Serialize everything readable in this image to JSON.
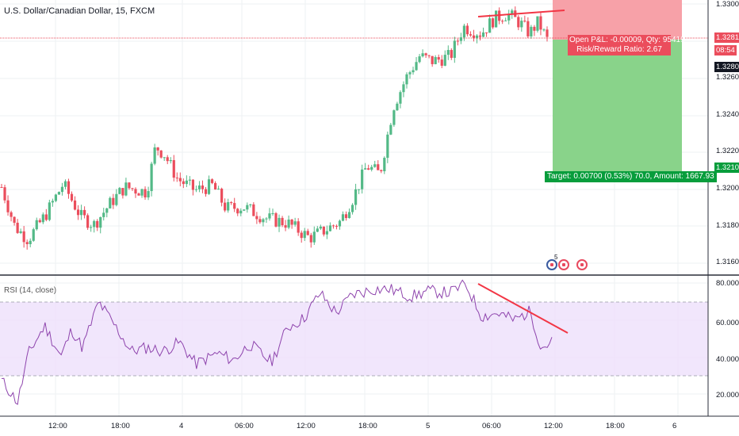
{
  "symbol_title": "U.S. Dollar/Canadian Dollar, 15, FXCM",
  "rsi_title": "RSI (14, close)",
  "colors": {
    "up": "#53b987",
    "down": "#eb4d5c",
    "rsi": "#8e44ad",
    "rsi_band": "#ede0fb",
    "red_line": "#f23645",
    "stop": "#f7a1a8",
    "target": "#89d38a"
  },
  "price_axis": {
    "ticks": [
      "1.33000",
      "1.32600",
      "1.32400",
      "1.32200",
      "1.32000",
      "1.31800",
      "1.31600"
    ],
    "current_price": "1.32817",
    "countdown": "08:54",
    "entry_tag": "1.32808",
    "target_tag": "1.32108"
  },
  "rsi_axis": {
    "ticks": [
      "80.0000",
      "60.0000",
      "40.0000",
      "20.0000"
    ]
  },
  "time_axis": {
    "ticks": [
      "12:00",
      "18:00",
      "4",
      "06:00",
      "12:00",
      "18:00",
      "5",
      "06:00",
      "12:00",
      "18:00",
      "6"
    ]
  },
  "position": {
    "open_pnl": "Open P&L: -0.00009, Qty: 95419",
    "risk_reward": "Risk/Reward Ratio: 2.67",
    "target": "Target: 0.00700 (0.53%) 70.0, Amount: 1667.93"
  },
  "events": [
    {
      "icon": "us-flag-event-icon",
      "count": "5"
    },
    {
      "icon": "canada-flag-event-icon"
    },
    {
      "icon": "canada-flag-event-icon"
    }
  ],
  "chart_data": {
    "type": "candlestick",
    "symbol": "USDCAD",
    "timeframe": "15",
    "price_range": [
      1.3152,
      1.331
    ],
    "close_path": [
      [
        0,
        1.3199
      ],
      [
        0.03,
        1.3175
      ],
      [
        0.06,
        1.3167
      ],
      [
        0.1,
        1.3182
      ],
      [
        0.14,
        1.3201
      ],
      [
        0.18,
        1.3181
      ],
      [
        0.21,
        1.3176
      ],
      [
        0.25,
        1.319
      ],
      [
        0.28,
        1.3199
      ],
      [
        0.33,
        1.3196
      ],
      [
        0.35,
        1.3224
      ],
      [
        0.37,
        1.3219
      ],
      [
        0.4,
        1.3204
      ],
      [
        0.44,
        1.3197
      ],
      [
        0.48,
        1.32
      ],
      [
        0.51,
        1.3186
      ],
      [
        0.55,
        1.3187
      ],
      [
        0.6,
        1.318
      ],
      [
        0.65,
        1.3177
      ],
      [
        0.7,
        1.3168
      ],
      [
        0.73,
        1.3172
      ],
      [
        0.77,
        1.3178
      ],
      [
        0.8,
        1.3193
      ],
      [
        0.83,
        1.3212
      ],
      [
        0.86,
        1.3207
      ],
      [
        0.89,
        1.3248
      ],
      [
        0.92,
        1.3266
      ],
      [
        0.95,
        1.3279
      ],
      [
        0.98,
        1.3276
      ],
      [
        1.02,
        1.3279
      ],
      [
        1.05,
        1.3297
      ],
      [
        1.09,
        1.3293
      ],
      [
        1.12,
        1.3302
      ],
      [
        1.15,
        1.3305
      ],
      [
        1.18,
        1.3299
      ],
      [
        1.2,
        1.3293
      ],
      [
        1.22,
        1.33
      ],
      [
        1.24,
        1.3289
      ]
    ],
    "rsi_path": [
      [
        0,
        27
      ],
      [
        0.03,
        15
      ],
      [
        0.05,
        42
      ],
      [
        0.08,
        57
      ],
      [
        0.11,
        40
      ],
      [
        0.13,
        55
      ],
      [
        0.15,
        45
      ],
      [
        0.18,
        70
      ],
      [
        0.21,
        57
      ],
      [
        0.24,
        43
      ],
      [
        0.27,
        45
      ],
      [
        0.3,
        43
      ],
      [
        0.33,
        48
      ],
      [
        0.36,
        36
      ],
      [
        0.4,
        42
      ],
      [
        0.43,
        38
      ],
      [
        0.46,
        47
      ],
      [
        0.5,
        37
      ],
      [
        0.53,
        56
      ],
      [
        0.56,
        61
      ],
      [
        0.59,
        75
      ],
      [
        0.62,
        64
      ],
      [
        0.65,
        74
      ],
      [
        0.69,
        77
      ],
      [
        0.72,
        77
      ],
      [
        0.76,
        73
      ],
      [
        0.79,
        76
      ],
      [
        0.83,
        75
      ],
      [
        0.86,
        80
      ],
      [
        0.89,
        62
      ],
      [
        0.92,
        64
      ],
      [
        0.95,
        60
      ],
      [
        0.98,
        65
      ],
      [
        1.0,
        45
      ],
      [
        1.02,
        48
      ]
    ],
    "rsi_levels": {
      "upper": 70,
      "middle": 50,
      "lower": 30
    },
    "position_levels": {
      "entry": 1.32808,
      "target": 1.32108
    },
    "trendlines": [
      {
        "pane": "price",
        "note": "upper red line from first swing high to second"
      },
      {
        "pane": "rsi",
        "note": "descending red line from RSI peak"
      }
    ]
  }
}
